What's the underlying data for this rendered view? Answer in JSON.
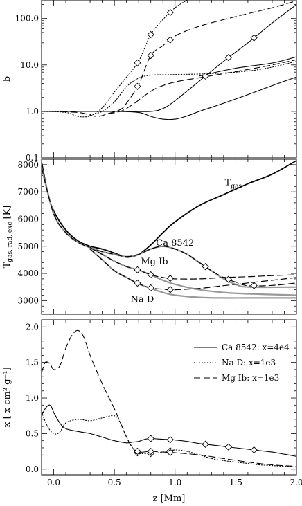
{
  "chart_data": [
    {
      "id": "top",
      "type": "line",
      "ylabel": "b",
      "yscale": "log",
      "xlim": [
        -0.1,
        2.0
      ],
      "ylim": [
        0.1,
        250
      ],
      "yticks": [
        {
          "v": 0.1,
          "label": "0.1"
        },
        {
          "v": 1,
          "label": "1.0"
        },
        {
          "v": 10,
          "label": "10.0"
        },
        {
          "v": 100,
          "label": "100.0"
        }
      ],
      "series": [
        {
          "style": "solid",
          "color": "#000000",
          "x": [
            -0.1,
            0.2,
            0.5,
            0.7,
            0.8,
            0.9,
            1.0,
            1.1,
            1.2,
            1.4,
            1.6,
            1.8,
            2.0
          ],
          "y": [
            1.0,
            1.0,
            1.0,
            0.95,
            0.78,
            0.68,
            0.68,
            0.8,
            1.0,
            1.5,
            2.3,
            3.6,
            5.5
          ]
        },
        {
          "style": "solid",
          "color": "#000000",
          "x": [
            -0.1,
            0.3,
            0.6,
            0.8,
            0.9,
            1.0,
            1.2,
            1.4,
            1.6,
            1.8,
            2.0
          ],
          "y": [
            1.0,
            1.0,
            1.0,
            1.0,
            1.15,
            1.7,
            4.5,
            12,
            30,
            80,
            200
          ],
          "markers": [
            1.25,
            1.44,
            1.65
          ]
        },
        {
          "style": "solid",
          "color": "#000000",
          "x": [
            1.2,
            1.5,
            1.8,
            2.0
          ],
          "y": [
            5.8,
            8.5,
            11,
            15
          ]
        },
        {
          "style": "dotted",
          "color": "#000000",
          "x": [
            -0.1,
            0.1,
            0.2,
            0.3,
            0.4,
            0.5,
            0.6,
            0.7,
            0.8,
            0.9,
            1.0,
            1.1
          ],
          "y": [
            1.0,
            0.95,
            0.78,
            0.8,
            1.2,
            2.6,
            5.5,
            12,
            45,
            95,
            170,
            250
          ],
          "markers": [
            0.69,
            0.8,
            0.96
          ]
        },
        {
          "style": "dotted",
          "color": "#000000",
          "x": [
            0.3,
            0.4,
            0.5,
            0.6,
            0.7,
            0.8,
            1.0,
            1.3,
            1.6,
            1.8,
            2.0
          ],
          "y": [
            0.85,
            1.0,
            1.6,
            3.4,
            5.2,
            6.0,
            6.2,
            6.5,
            7.4,
            9,
            12
          ]
        },
        {
          "style": "dashed",
          "color": "#000000",
          "x": [
            -0.1,
            0.2,
            0.35,
            0.45,
            0.55,
            0.6,
            0.7,
            0.8,
            0.9,
            1.0,
            1.2,
            1.5,
            1.8,
            2.0
          ],
          "y": [
            1.0,
            0.95,
            0.78,
            0.9,
            1.1,
            1.5,
            3.8,
            16,
            26,
            42,
            68,
            110,
            170,
            240
          ],
          "markers": [
            0.69,
            0.8,
            0.96
          ]
        },
        {
          "style": "dashed",
          "color": "#000000",
          "x": [
            0.45,
            0.55,
            0.65,
            0.75,
            0.85,
            1.0,
            1.2,
            1.4,
            1.6,
            1.8,
            2.0
          ],
          "y": [
            0.9,
            1.0,
            1.4,
            2.2,
            3.2,
            4.3,
            5.3,
            6.5,
            8.0,
            10,
            13
          ]
        }
      ]
    },
    {
      "id": "mid",
      "type": "line",
      "ylabel": "T",
      "ylabel_sub": "gas, rad, exc",
      "ylabel_unit": " [K]",
      "xlim": [
        -0.1,
        2.0
      ],
      "ylim": [
        2500,
        8200
      ],
      "yticks": [
        {
          "v": 3000,
          "label": "3000"
        },
        {
          "v": 4000,
          "label": "4000"
        },
        {
          "v": 5000,
          "label": "5000"
        },
        {
          "v": 6000,
          "label": "6000"
        },
        {
          "v": 7000,
          "label": "7000"
        },
        {
          "v": 8000,
          "label": "8000"
        }
      ],
      "series": [
        {
          "style": "solid",
          "color": "#000000",
          "width": 1.8,
          "x": [
            -0.1,
            -0.05,
            0.0,
            0.1,
            0.2,
            0.3,
            0.4,
            0.5,
            0.6,
            0.7,
            0.8,
            0.9,
            1.0,
            1.2,
            1.4,
            1.6,
            1.8,
            2.0
          ],
          "y": [
            8100,
            7000,
            6300,
            5600,
            5200,
            5000,
            4900,
            4750,
            4600,
            4700,
            5050,
            5500,
            5900,
            6500,
            6900,
            7300,
            7650,
            8150
          ]
        },
        {
          "style": "solid",
          "color": "#999999",
          "width": 2.2,
          "x": [
            -0.1,
            0.0,
            0.1,
            0.2,
            0.3,
            0.4,
            0.5,
            0.6,
            0.7,
            0.8,
            0.9,
            1.0,
            1.1,
            1.2,
            1.3,
            1.4,
            1.5,
            1.6,
            2.0
          ],
          "y": [
            7900,
            6200,
            5500,
            5150,
            4950,
            4800,
            4700,
            4620,
            4700,
            4900,
            5000,
            4900,
            4700,
            4400,
            4100,
            3800,
            3600,
            3500,
            3500
          ]
        },
        {
          "style": "dashed",
          "color": "#000000",
          "width": 1.2,
          "x": [
            -0.1,
            0.0,
            0.1,
            0.2,
            0.3,
            0.4,
            0.5,
            0.6,
            0.7,
            0.8,
            0.9,
            1.0,
            1.1,
            1.2,
            1.3,
            1.4,
            1.5,
            1.6,
            1.8,
            2.0
          ],
          "y": [
            7900,
            6200,
            5500,
            5150,
            4950,
            4800,
            4700,
            4620,
            4700,
            4900,
            5000,
            4900,
            4700,
            4400,
            4100,
            3850,
            3680,
            3550,
            3560,
            3650
          ],
          "markers": [
            1.25,
            1.44,
            1.65
          ]
        },
        {
          "style": "solid",
          "color": "#999999",
          "width": 2.2,
          "x": [
            0.3,
            0.4,
            0.5,
            0.6,
            0.7,
            0.8,
            0.9,
            1.0,
            1.2,
            1.4,
            1.6,
            2.0
          ],
          "y": [
            4950,
            4700,
            4450,
            4250,
            4120,
            3950,
            3750,
            3600,
            3400,
            3300,
            3250,
            3200
          ]
        },
        {
          "style": "dashed",
          "color": "#000000",
          "width": 1.2,
          "x": [
            0.3,
            0.4,
            0.5,
            0.6,
            0.7,
            0.8,
            0.9,
            1.0,
            1.2,
            1.4,
            1.6,
            1.8,
            2.0
          ],
          "y": [
            4950,
            4700,
            4450,
            4250,
            4120,
            3950,
            3850,
            3800,
            3800,
            3850,
            3880,
            3920,
            3950
          ],
          "markers": [
            0.69,
            0.8,
            0.96
          ]
        },
        {
          "style": "solid",
          "color": "#999999",
          "width": 2.2,
          "x": [
            0.3,
            0.4,
            0.5,
            0.6,
            0.7,
            0.8,
            0.9,
            1.0,
            1.2,
            1.4,
            1.6,
            2.0
          ],
          "y": [
            4900,
            4500,
            4100,
            3850,
            3620,
            3450,
            3300,
            3200,
            3120,
            3100,
            3100,
            3100
          ]
        },
        {
          "style": "dashed",
          "color": "#000000",
          "width": 1.2,
          "x": [
            0.3,
            0.4,
            0.5,
            0.6,
            0.7,
            0.8,
            0.9,
            1.0,
            1.2,
            1.4,
            1.6,
            1.8,
            2.0
          ],
          "y": [
            4900,
            4500,
            4100,
            3850,
            3620,
            3470,
            3420,
            3400,
            3450,
            3550,
            3650,
            3750,
            3850
          ],
          "markers": [
            0.69,
            0.8,
            0.96
          ]
        }
      ],
      "annotations": [
        {
          "text": "T",
          "sub": "gas",
          "x": 1.48,
          "y": 7250
        },
        {
          "text": "Ca 8542",
          "x": 1.0,
          "y": 5020
        },
        {
          "text": "Mg Ib",
          "x": 0.83,
          "y": 4330
        },
        {
          "text": "Na D",
          "x": 0.73,
          "y": 2950
        }
      ]
    },
    {
      "id": "bottom",
      "type": "line",
      "ylabel": "κ [ x cm² g⁻¹]",
      "xlabel": "z [Mm]",
      "xlim": [
        -0.1,
        2.0
      ],
      "ylim": [
        -0.08,
        2.1
      ],
      "xticks": [
        {
          "v": 0.0,
          "label": "0.0"
        },
        {
          "v": 0.5,
          "label": "0.5"
        },
        {
          "v": 1.0,
          "label": "1.0"
        },
        {
          "v": 1.5,
          "label": "1.5"
        },
        {
          "v": 2.0,
          "label": "2.0"
        }
      ],
      "yticks": [
        {
          "v": 0.0,
          "label": "0.0"
        },
        {
          "v": 0.5,
          "label": "0.5"
        },
        {
          "v": 1.0,
          "label": "1.0"
        },
        {
          "v": 1.5,
          "label": "1.5"
        },
        {
          "v": 2.0,
          "label": "2.0"
        }
      ],
      "legend": {
        "position": "top-right",
        "entries": [
          {
            "label": "Ca 8542: x=4e4",
            "style": "solid"
          },
          {
            "label": "Na D: x=1e3",
            "style": "dotted"
          },
          {
            "label": "Mg Ib: x=1e3",
            "style": "dashed"
          }
        ]
      },
      "series": [
        {
          "style": "solid",
          "color": "#000000",
          "x": [
            -0.1,
            -0.07,
            -0.04,
            -0.02,
            0.0,
            0.05,
            0.1,
            0.2,
            0.3,
            0.4,
            0.5,
            0.6,
            0.65,
            0.7,
            0.75,
            0.8,
            0.9,
            1.0,
            1.1,
            1.2,
            1.3,
            1.4,
            1.5,
            1.6,
            1.7,
            1.8,
            1.9,
            2.0
          ],
          "y": [
            0.75,
            0.85,
            0.9,
            0.88,
            0.8,
            0.65,
            0.57,
            0.53,
            0.5,
            0.45,
            0.4,
            0.37,
            0.38,
            0.39,
            0.42,
            0.43,
            0.42,
            0.41,
            0.39,
            0.36,
            0.34,
            0.32,
            0.3,
            0.28,
            0.26,
            0.24,
            0.21,
            0.18
          ],
          "markers": [
            0.8,
            0.96,
            1.25,
            1.44,
            1.65
          ]
        },
        {
          "style": "dotted",
          "color": "#000000",
          "x": [
            -0.1,
            -0.05,
            0.0,
            0.05,
            0.1,
            0.2,
            0.3,
            0.4,
            0.5,
            0.55,
            0.6,
            0.65,
            0.68,
            0.7,
            0.8,
            0.9,
            1.0,
            1.1,
            1.2,
            1.3,
            1.4,
            1.5,
            1.6,
            1.7,
            1.8,
            1.9,
            2.0
          ],
          "y": [
            0.8,
            0.6,
            0.5,
            0.52,
            0.65,
            0.7,
            0.68,
            0.72,
            0.75,
            0.65,
            0.45,
            0.3,
            0.24,
            0.22,
            0.22,
            0.24,
            0.27,
            0.25,
            0.2,
            0.15,
            0.12,
            0.1,
            0.08,
            0.06,
            0.05,
            0.04,
            0.03
          ],
          "markers": [
            0.69,
            0.8,
            0.96
          ]
        },
        {
          "style": "dashed",
          "color": "#000000",
          "x": [
            -0.1,
            -0.07,
            -0.03,
            0.0,
            0.05,
            0.1,
            0.15,
            0.2,
            0.25,
            0.3,
            0.4,
            0.5,
            0.55,
            0.6,
            0.65,
            0.7,
            0.8,
            0.9,
            1.0,
            1.2,
            1.4,
            1.6,
            1.8,
            2.0
          ],
          "y": [
            1.35,
            1.5,
            1.48,
            1.4,
            1.45,
            1.7,
            1.88,
            1.95,
            1.85,
            1.6,
            1.2,
            0.85,
            0.65,
            0.45,
            0.3,
            0.24,
            0.25,
            0.24,
            0.23,
            0.2,
            0.15,
            0.1,
            0.06,
            0.04
          ],
          "markers": [
            0.69,
            0.8,
            0.96
          ]
        }
      ]
    }
  ]
}
